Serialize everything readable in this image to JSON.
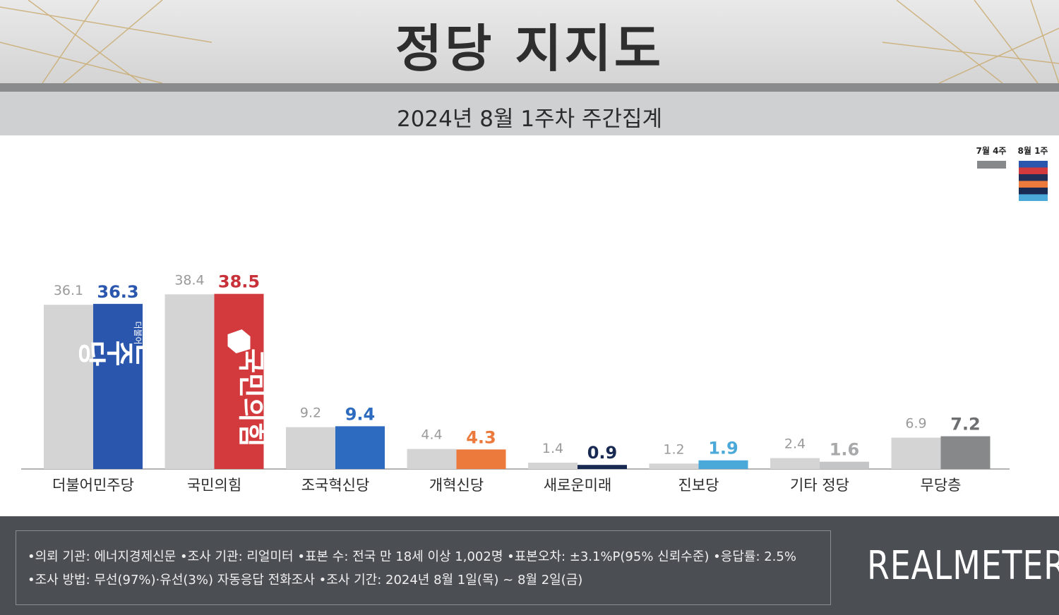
{
  "header": {
    "title": "정당 지지도",
    "subtitle": "2024년 8월 1주차 주간집계"
  },
  "legend": {
    "prev": "7월 4주",
    "curr": "8월 1주"
  },
  "colors": {
    "prev_bar": "#d4d4d4",
    "democratic": "#2a57ad",
    "ppp": "#d33a3d",
    "rebuild": "#2c6bbf",
    "reform": "#eb7a3c",
    "newfuture": "#182a52",
    "progressive": "#4aa9d9",
    "other": "#c4c5c7",
    "none": "#87888a"
  },
  "logos": {
    "democratic": "민주당",
    "democratic_small": "더불어",
    "ppp": "국민의힘"
  },
  "chart_data": {
    "type": "bar",
    "categories": [
      "더불어민주당",
      "국민의힘",
      "조국혁신당",
      "개혁신당",
      "새로운미래",
      "진보당",
      "기타 정당",
      "무당층"
    ],
    "series": [
      {
        "name": "7월 4주",
        "values": [
          36.1,
          38.4,
          9.2,
          4.4,
          1.4,
          1.2,
          2.4,
          6.9
        ]
      },
      {
        "name": "8월 1주",
        "values": [
          36.3,
          38.5,
          9.4,
          4.3,
          0.9,
          1.9,
          1.6,
          7.2
        ]
      }
    ],
    "labels_prev": [
      "36.1",
      "38.4",
      "9.2",
      "4.4",
      "1.4",
      "1.2",
      "2.4",
      "6.9"
    ],
    "labels_curr": [
      "36.3",
      "38.5",
      "9.4",
      "4.3",
      "0.9",
      "1.9",
      "1.6",
      "7.2"
    ],
    "label_colors_curr": [
      "#2a57ad",
      "#c8303a",
      "#2c6bbf",
      "#eb7a3c",
      "#182a52",
      "#4aa9d9",
      "#a8a9ab",
      "#6e6f71"
    ],
    "ylim": [
      0,
      45
    ],
    "grid": false,
    "legend_position": "top-right"
  },
  "footer": {
    "line1": "•의뢰 기관: 에너지경제신문  •조사 기관: 리얼미터 •표본 수: 전국 만 18세 이상 1,002명 •표본오차: ±3.1%P(95% 신뢰수준) •응답률: 2.5%",
    "line2": "•조사 방법: 무선(97%)·유선(3%) 자동응답 전화조사 •조사 기간: 2024년 8월 1일(목) ~ 8월 2일(금)",
    "logo": "REALMETER"
  }
}
